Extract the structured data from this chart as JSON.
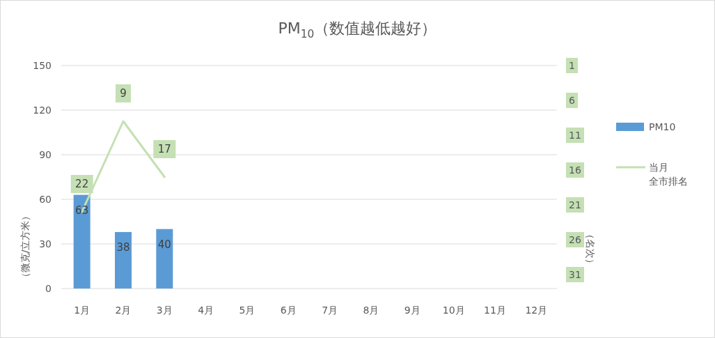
{
  "chart_data": {
    "type": "bar",
    "title": "PM$_{10}$（数值越低越好）",
    "ylabel": "（微克/立方米）",
    "y2label": "（名次）",
    "categories": [
      "1月",
      "2月",
      "3月",
      "4月",
      "5月",
      "6月",
      "7月",
      "8月",
      "9月",
      "10月",
      "11月",
      "12月"
    ],
    "series": [
      {
        "name": "PM10",
        "color": "#5b9bd5",
        "values": [
          63,
          38,
          40,
          null,
          null,
          null,
          null,
          null,
          null,
          null,
          null,
          null
        ]
      },
      {
        "name": "当月全市排名",
        "type": "line",
        "axis": "y2",
        "color": "#c5e0b4",
        "values": [
          22,
          9,
          17,
          null,
          null,
          null,
          null,
          null,
          null,
          null,
          null,
          null
        ]
      }
    ],
    "ylim": [
      0,
      150
    ],
    "yticks": [
      0,
      30,
      60,
      90,
      120,
      150
    ],
    "y2lim": [
      33,
      1
    ],
    "y2ticks": [
      1,
      6,
      11,
      16,
      21,
      26,
      31
    ],
    "grid": "y",
    "legend": "right",
    "data_labels": true,
    "marker": "none",
    "line_style": "solid"
  }
}
